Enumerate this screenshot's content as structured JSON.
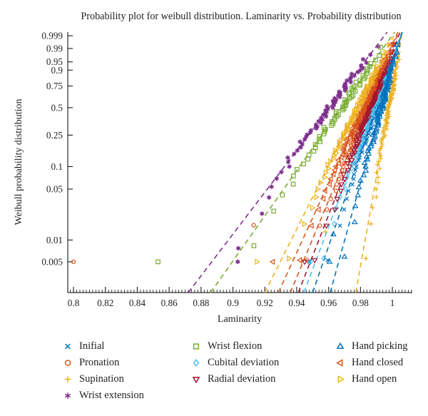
{
  "chart_data": {
    "type": "scatter",
    "title": "Probability plot for weibull distribution. Laminarity vs. Probability distribution",
    "xlabel": "Laminarity",
    "ylabel": "Weibull probability distribution",
    "x_axis": {
      "min": 0.7964,
      "max": 1.0125,
      "major_ticks": [
        0.8,
        0.82,
        0.84,
        0.86,
        0.88,
        0.9,
        0.92,
        0.94,
        0.96,
        0.98,
        1
      ],
      "major_tick_labels": [
        "0.8",
        "0.82",
        "0.84",
        "0.86",
        "0.88",
        "0.9",
        "0.92",
        "0.94",
        "0.96",
        "0.98",
        "1"
      ],
      "minor_tick_step": 0.002
    },
    "y_axis": {
      "scale": "weibull-probability",
      "tick_probs": [
        0.005,
        0.01,
        0.05,
        0.1,
        0.25,
        0.5,
        0.75,
        0.9,
        0.95,
        0.99,
        0.999
      ],
      "tick_labels": [
        "0.005",
        "0.01",
        "0.05",
        "0.1",
        "0.25",
        "0.5",
        "0.75",
        "0.9",
        "0.95",
        "0.99",
        "0.999"
      ],
      "w_top": 2.05,
      "w_bottom": -6.28
    },
    "grid": false,
    "legend": {
      "position": "below",
      "columns": [
        [
          0,
          1,
          2,
          3
        ],
        [
          4,
          5,
          6
        ],
        [
          7,
          8,
          9
        ]
      ]
    },
    "series": [
      {
        "name": "inifial",
        "legend_label": "Inifial",
        "marker": "x",
        "color": "#0072BD",
        "n_points": 95,
        "fit_line": {
          "x_at_plot_bottom": 0.95,
          "x_at_p90": 0.998
        },
        "bend": 0.001,
        "jitter": 0.0012,
        "outliers": [
          [
            0.948,
            0.005
          ]
        ]
      },
      {
        "name": "pronation",
        "legend_label": "Pronation",
        "marker": "o",
        "color": "#D95319",
        "n_points": 95,
        "fit_line": {
          "x_at_plot_bottom": 0.936,
          "x_at_p90": 0.994
        },
        "bend": 0.001,
        "jitter": 0.0012,
        "outliers": [
          [
            0.8,
            0.005
          ],
          [
            0.913,
            0.016
          ]
        ]
      },
      {
        "name": "supination",
        "legend_label": "Supination",
        "marker": "plus",
        "color": "#EDB120",
        "n_points": 90,
        "fit_line": {
          "x_at_plot_bottom": 0.977,
          "x_at_p90": 1.002
        },
        "bend": 0.001,
        "jitter": 0.0012,
        "outliers": [
          [
            0.943,
            0.005
          ],
          [
            0.958,
            0.013
          ]
        ]
      },
      {
        "name": "wrist-extension",
        "legend_label": "Wrist extension",
        "marker": "asterisk",
        "color": "#7E2F8E",
        "n_points": 65,
        "fit_line": {
          "x_at_plot_bottom": 0.872,
          "x_at_p90": 0.9785
        },
        "bend": 0.004,
        "jitter": 0.0022,
        "outliers": [
          [
            0.903,
            0.005
          ]
        ]
      },
      {
        "name": "wrist-flexion",
        "legend_label": "Wrist flexion",
        "marker": "square",
        "color": "#77AC30",
        "n_points": 60,
        "fit_line": {
          "x_at_plot_bottom": 0.886,
          "x_at_p90": 0.9845
        },
        "bend": 0.003,
        "jitter": 0.0022,
        "outliers": [
          [
            0.853,
            0.005
          ]
        ]
      },
      {
        "name": "cubital-deviation",
        "legend_label": "Cubital deviation",
        "marker": "diamond",
        "color": "#4DBEEE",
        "n_points": 90,
        "fit_line": {
          "x_at_plot_bottom": 0.9445,
          "x_at_p90": 0.997
        },
        "bend": 0.001,
        "jitter": 0.0012,
        "outliers": [
          [
            0.9486,
            0.005
          ]
        ]
      },
      {
        "name": "radial-deviation",
        "legend_label": "Radial deviation",
        "marker": "triangle-down",
        "color": "#A2142F",
        "n_points": 95,
        "fit_line": {
          "x_at_plot_bottom": 0.941,
          "x_at_p90": 0.9955
        },
        "bend": 0.001,
        "jitter": 0.0012,
        "outliers": [
          [
            0.945,
            0.005
          ]
        ]
      },
      {
        "name": "hand-picking",
        "legend_label": "Hand picking",
        "marker": "triangle-up",
        "color": "#0072BD",
        "n_points": 85,
        "fit_line": {
          "x_at_plot_bottom": 0.961,
          "x_at_p90": 0.9995
        },
        "bend": 0.001,
        "jitter": 0.0012,
        "outliers": [
          [
            0.9606,
            0.005
          ],
          [
            0.963,
            0.012
          ]
        ]
      },
      {
        "name": "hand-closed",
        "legend_label": "Hand closed",
        "marker": "triangle-left",
        "color": "#D95319",
        "n_points": 95,
        "fit_line": {
          "x_at_plot_bottom": 0.9285,
          "x_at_p90": 0.9925
        },
        "bend": 0.001,
        "jitter": 0.0012,
        "outliers": [
          [
            0.925,
            0.005
          ]
        ]
      },
      {
        "name": "hand-open",
        "legend_label": "Hand open",
        "marker": "triangle-right",
        "color": "#EDB120",
        "n_points": 90,
        "fit_line": {
          "x_at_plot_bottom": 0.92,
          "x_at_p90": 0.99
        },
        "bend": 0.0012,
        "jitter": 0.0012,
        "outliers": [
          [
            0.915,
            0.005
          ]
        ]
      }
    ]
  }
}
